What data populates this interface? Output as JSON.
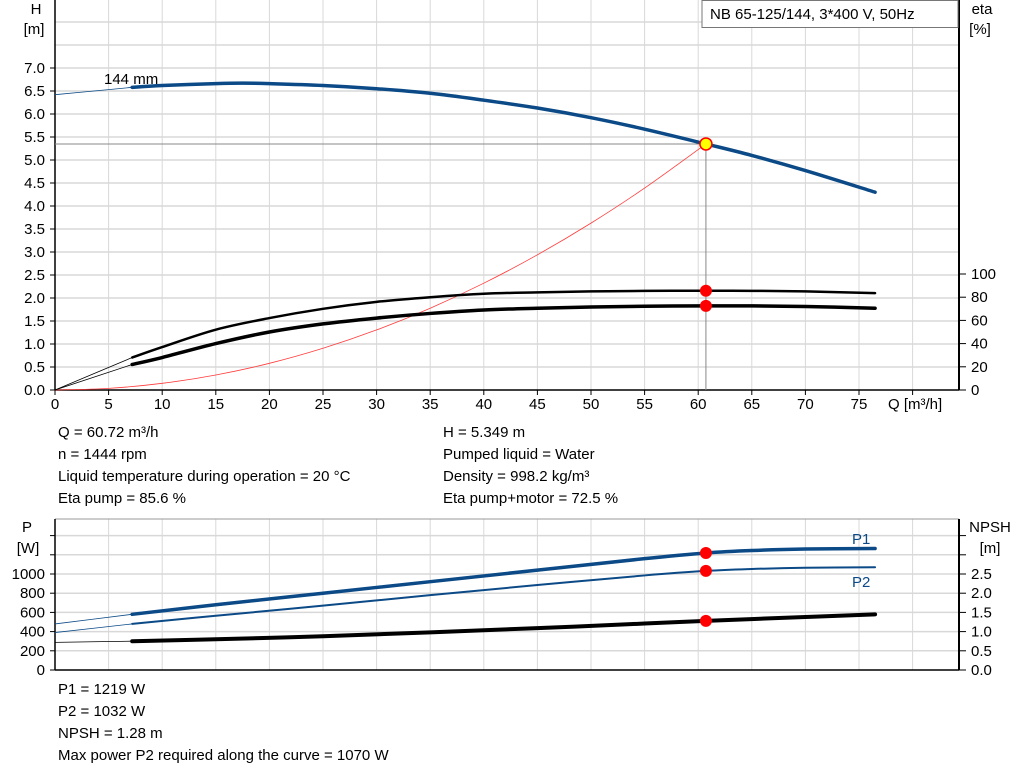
{
  "chart_data": [
    {
      "type": "line",
      "title": "NB 65-125/144, 3*400 V, 50Hz",
      "xlabel": "Q [m³/h]",
      "ylabel": "H",
      "ylabel_unit": "[m]",
      "y2label": "eta",
      "y2label_unit": "[%]",
      "xlim": [
        0,
        84.5
      ],
      "ylim": [
        0,
        8.5
      ],
      "y2lim": [
        0,
        100
      ],
      "grid": true,
      "x_ticks": [
        "0",
        "5",
        "10",
        "15",
        "20",
        "25",
        "30",
        "35",
        "40",
        "45",
        "50",
        "55",
        "60",
        "65",
        "70",
        "75"
      ],
      "y_ticks": [
        "0.0",
        "0.5",
        "1.0",
        "1.5",
        "2.0",
        "2.5",
        "3.0",
        "3.5",
        "4.0",
        "4.5",
        "5.0",
        "5.5",
        "6.0",
        "6.5",
        "7.0"
      ],
      "y2_ticks": [
        "0",
        "20",
        "40",
        "60",
        "80",
        "100"
      ],
      "curve_label": "144 mm",
      "duty_point": {
        "Q": 60.72,
        "H": 5.349,
        "eta_pump": 85.6,
        "eta_pump_motor": 72.5
      },
      "series": [
        {
          "id": "H",
          "axis": "left",
          "color": "#0b4a87",
          "x": [
            0,
            5,
            7.2,
            10,
            15,
            17.5,
            20,
            25,
            30,
            35,
            40,
            45,
            50,
            55,
            60.72,
            65,
            70,
            76.5
          ],
          "y": [
            6.42,
            6.53,
            6.58,
            6.62,
            6.66,
            6.67,
            6.66,
            6.62,
            6.55,
            6.45,
            6.3,
            6.13,
            5.92,
            5.67,
            5.349,
            5.1,
            4.77,
            4.3
          ]
        },
        {
          "id": "eta_pump",
          "axis": "right",
          "color": "#000000",
          "x": [
            0,
            7.2,
            10,
            15,
            20,
            25,
            30,
            35,
            40,
            45,
            50,
            55,
            60.72,
            65,
            70,
            76.5
          ],
          "y": [
            0,
            28,
            37,
            52,
            62,
            70,
            76,
            80,
            83,
            84.2,
            85,
            85.4,
            85.6,
            85.5,
            85,
            83.5
          ]
        },
        {
          "id": "eta_pump_motor",
          "axis": "right",
          "color": "#000000",
          "x": [
            0,
            7.2,
            10,
            15,
            20,
            25,
            30,
            35,
            40,
            45,
            50,
            55,
            60.72,
            65,
            70,
            76.5
          ],
          "y": [
            0,
            22,
            28,
            40,
            50,
            57,
            62,
            66,
            69,
            70.5,
            71.5,
            72.2,
            72.5,
            72.5,
            72,
            70.5
          ]
        },
        {
          "id": "system",
          "axis": "left",
          "color": "#ff3b3b",
          "x": [
            0,
            5,
            10,
            15,
            20,
            25,
            30,
            35,
            40,
            45,
            50,
            55,
            60.72
          ],
          "y": [
            0,
            0.036,
            0.145,
            0.327,
            0.58,
            0.907,
            1.306,
            1.778,
            2.322,
            2.939,
            3.628,
            4.39,
            5.349
          ]
        }
      ]
    },
    {
      "type": "line",
      "ylabel": "P",
      "ylabel_unit": "[W]",
      "y2label": "NPSH",
      "y2label_unit": "[m]",
      "xlim": [
        0,
        84.5
      ],
      "ylim": [
        0,
        1580
      ],
      "y2lim": [
        0,
        3.95
      ],
      "grid": true,
      "y_ticks": [
        "0",
        "200",
        "400",
        "600",
        "800",
        "1000"
      ],
      "y2_ticks": [
        "0.0",
        "0.5",
        "1.0",
        "1.5",
        "2.0",
        "2.5"
      ],
      "duty_point": {
        "Q": 60.72,
        "P1": 1219,
        "P2": 1032,
        "NPSH": 1.28
      },
      "series": [
        {
          "id": "P1",
          "name": "P1",
          "axis": "left",
          "color": "#0b4a87",
          "x": [
            0,
            7.2,
            15,
            25,
            35,
            45,
            55,
            60.72,
            65,
            70,
            76.5
          ],
          "y": [
            480,
            580,
            680,
            800,
            920,
            1040,
            1160,
            1219,
            1245,
            1260,
            1265
          ]
        },
        {
          "id": "P2",
          "name": "P2",
          "axis": "left",
          "color": "#0b4a87",
          "x": [
            0,
            7.2,
            15,
            25,
            35,
            45,
            55,
            60.72,
            65,
            70,
            76.5
          ],
          "y": [
            390,
            480,
            565,
            670,
            780,
            885,
            985,
            1032,
            1052,
            1065,
            1070
          ]
        },
        {
          "id": "NPSH",
          "axis": "right",
          "color": "#000000",
          "x": [
            0,
            7.2,
            15,
            25,
            35,
            45,
            55,
            60.72,
            70,
            76.5
          ],
          "y": [
            0.72,
            0.75,
            0.8,
            0.88,
            0.98,
            1.09,
            1.21,
            1.28,
            1.38,
            1.45
          ]
        }
      ]
    }
  ],
  "info_top": {
    "left": [
      "Q = 60.72 m³/h",
      "n = 1444 rpm",
      "Liquid temperature during operation = 20 °C",
      "Eta pump = 85.6 %"
    ],
    "right": [
      "H = 5.349 m",
      "Pumped liquid = Water",
      "Density = 998.2 kg/m³",
      "Eta pump+motor = 72.5 %"
    ]
  },
  "info_bottom": [
    "P1 = 1219 W",
    "P2 = 1032 W",
    "NPSH = 1.28 m",
    "Max power P2 required along the curve = 1070 W"
  ],
  "colors": {
    "grid": "#d8d8d8",
    "head": "#0b4a87",
    "duty_marker": "#ff0000",
    "duty_highlight": "#ffff00"
  }
}
